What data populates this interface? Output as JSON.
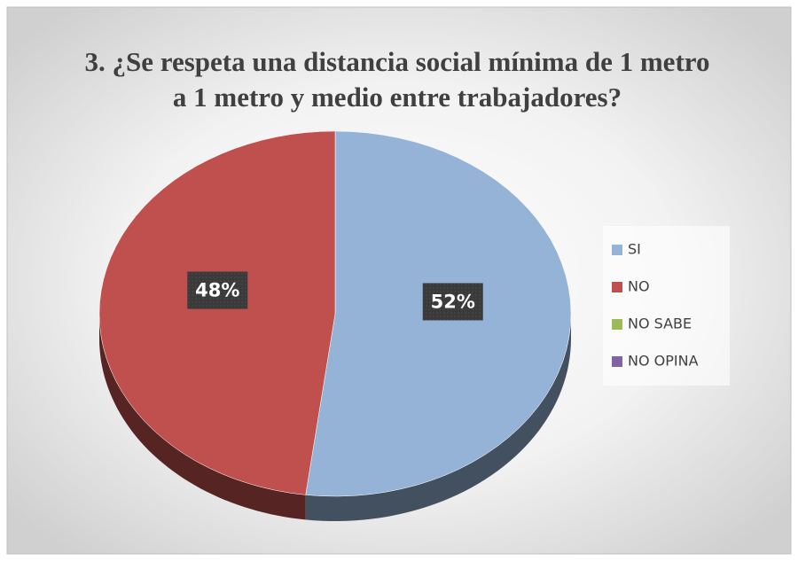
{
  "chart_data": {
    "type": "pie",
    "title": "3. ¿Se respeta una distancia social mínima de 1 metro a 1 metro y medio entre trabajadores?",
    "categories": [
      "SI",
      "NO",
      "NO SABE",
      "NO OPINA"
    ],
    "values": [
      52,
      48,
      0,
      0
    ],
    "value_labels": [
      "52%",
      "48%",
      null,
      null
    ],
    "colors": [
      "#95b3d7",
      "#c0504d",
      "#9bbb59",
      "#8064a2"
    ],
    "legend": "right"
  }
}
